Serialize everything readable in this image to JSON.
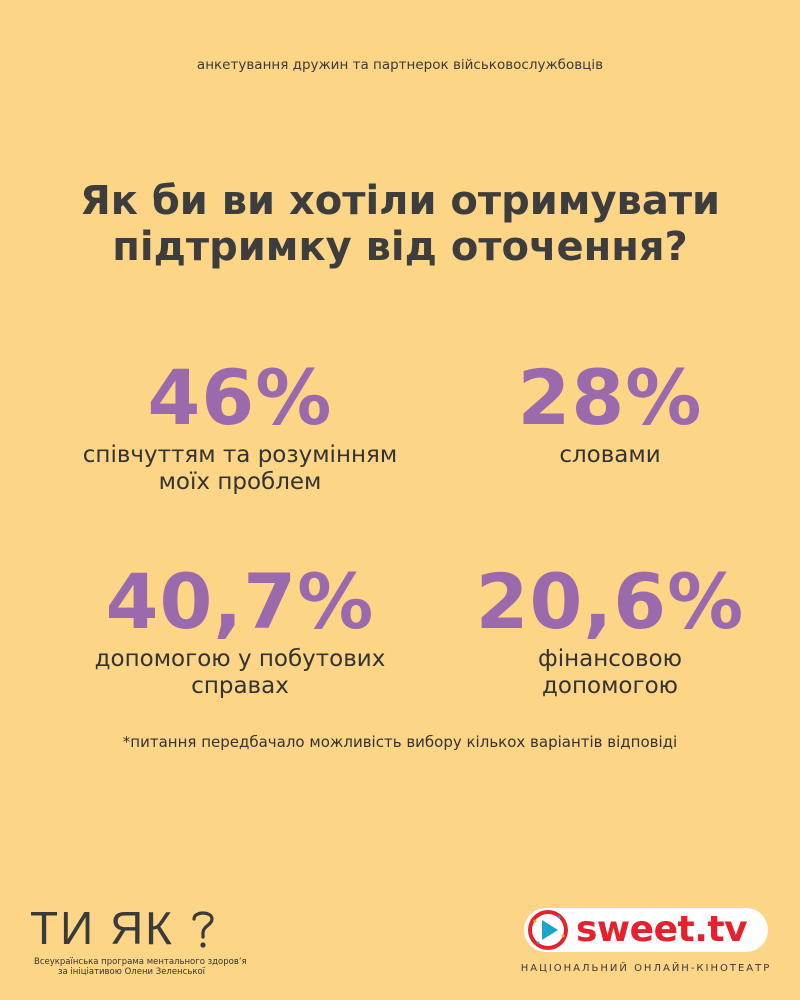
{
  "header": {
    "subtitle": "анкетування дружин та партнерок військовослужбовців",
    "title_line1": "Як би ви хотіли отримувати",
    "title_line2": "підтримку від оточення?"
  },
  "stats": [
    {
      "value": "46%",
      "label_line1": "співчуттям та розумінням",
      "label_line2": "моїх проблем"
    },
    {
      "value": "28%",
      "label_line1": "словами",
      "label_line2": ""
    },
    {
      "value": "40,7%",
      "label_line1": "допомогою у побутових",
      "label_line2": "справах"
    },
    {
      "value": "20,6%",
      "label_line1": "фінансовою",
      "label_line2": "допомогою"
    }
  ],
  "footnote": "*питання передбачало можливість вибору кількох варіантів відповіді",
  "logos": {
    "left": {
      "mark": "ТИ ЯК",
      "line1": "Всеукраїнська програма ментального здоров’я",
      "line2": "за ініціативою Олени Зеленської"
    },
    "right": {
      "brand": "sweet.tv",
      "tagline": "НАЦІОНАЛЬНИЙ ОНЛАЙН-КІНОТЕАТР"
    }
  },
  "colors": {
    "background": "#fdd587",
    "accent": "#9a6aad",
    "brand_red": "#e5212e"
  }
}
